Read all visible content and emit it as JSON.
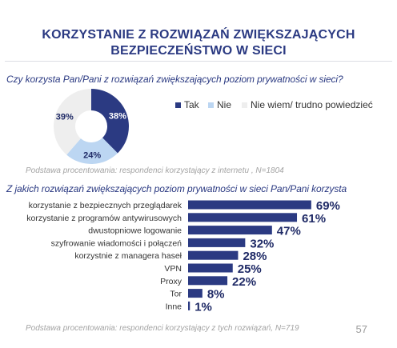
{
  "header": {
    "title_line1": "KORZYSTANIE Z ROZWIĄZAŃ ZWIĘKSZAJĄCYCH",
    "title_line2": "BEZPIECZEŃSTWO W SIECI"
  },
  "colors": {
    "dark_blue": "#2b3a82",
    "light_blue": "#bcd6f2",
    "light_gray": "#eeeeee",
    "bar": "#2b3a82"
  },
  "chart_data": [
    {
      "type": "pie",
      "title": "Czy korzysta Pan/Pani z rozwiązań zwiększających poziom prywatności w sieci?",
      "categories": [
        "Tak",
        "Nie",
        "Nie wiem/ trudno powiedzieć"
      ],
      "values": [
        38,
        24,
        39
      ],
      "value_labels": [
        "38%",
        "24%",
        "39%"
      ],
      "legend": "right",
      "base_note": "Podstawa procentowania: respondenci korzystający z internetu , N=1804"
    },
    {
      "type": "bar",
      "orientation": "horizontal",
      "title": "Z jakich rozwiązań zwiększających poziom prywatności w sieci Pan/Pani korzysta",
      "categories": [
        "korzystanie z bezpiecznych przeglądarek",
        "korzystanie z programów antywirusowych",
        "dwustopniowe logowanie",
        "szyfrowanie wiadomości i połączeń",
        "korzystnie z managera haseł",
        "VPN",
        "Proxy",
        "Tor",
        "Inne"
      ],
      "values": [
        69,
        61,
        47,
        32,
        28,
        25,
        22,
        8,
        1
      ],
      "value_labels": [
        "69%",
        "61%",
        "47%",
        "32%",
        "28%",
        "25%",
        "22%",
        "8%",
        "1%"
      ],
      "xlim": [
        0,
        100
      ],
      "base_note": "Podstawa procentowania: respondenci korzystający z tych rozwiązań, N=719"
    }
  ],
  "page_number": "57"
}
